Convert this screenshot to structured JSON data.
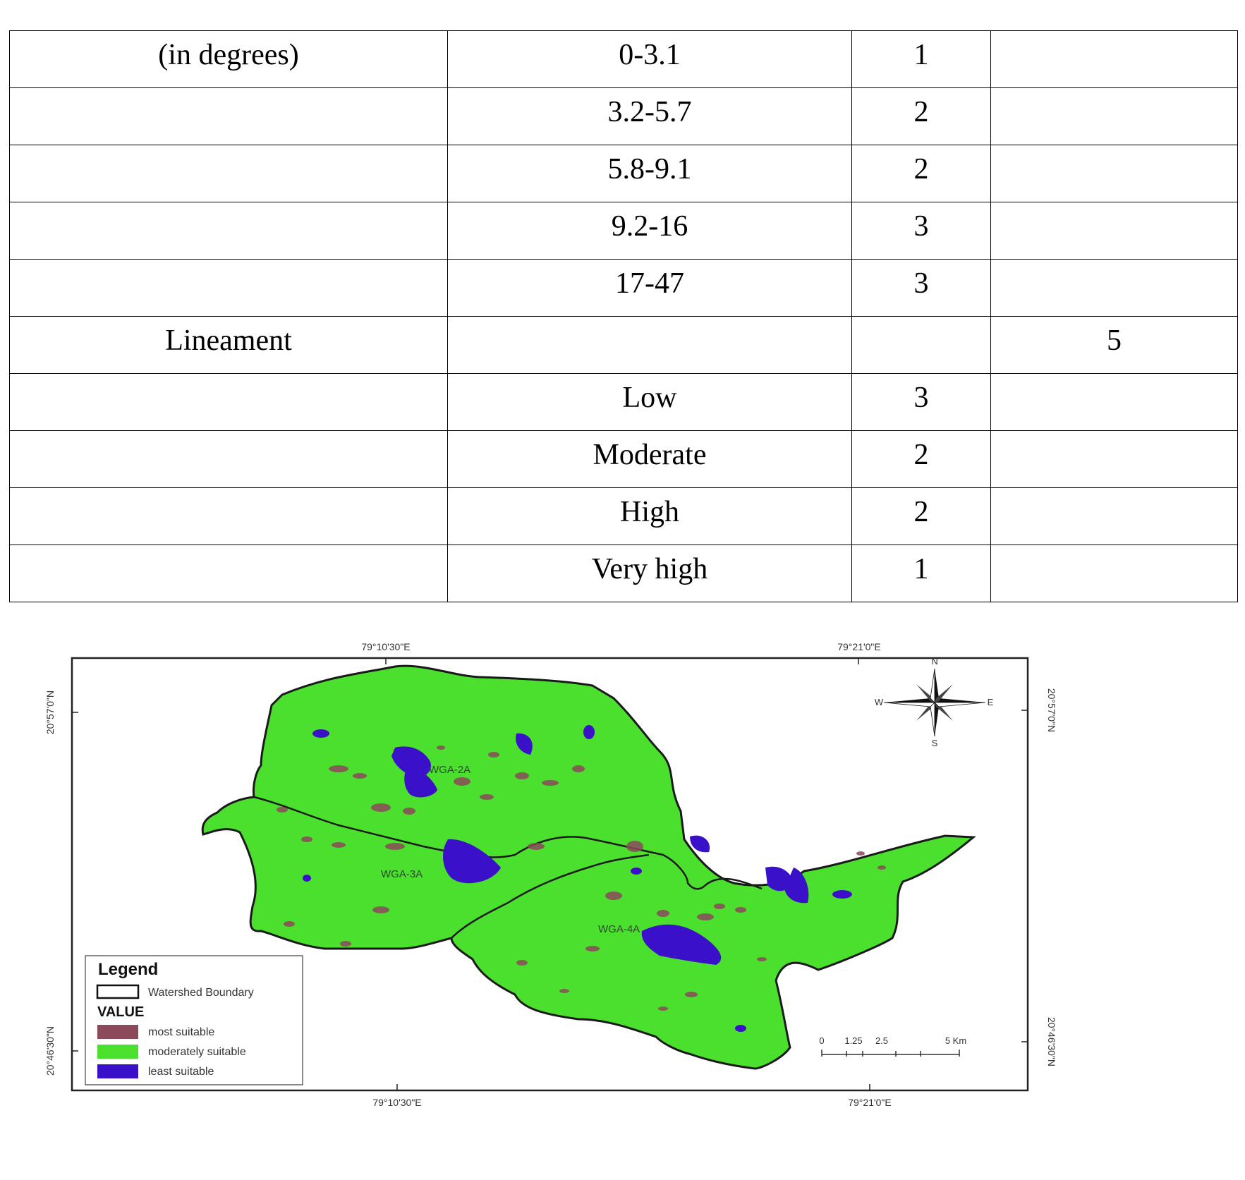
{
  "table": {
    "rows": [
      [
        "(in degrees)",
        "0-3.1",
        "1",
        ""
      ],
      [
        "",
        "3.2-5.7",
        "2",
        ""
      ],
      [
        "",
        "5.8-9.1",
        "2",
        ""
      ],
      [
        "",
        "9.2-16",
        "3",
        ""
      ],
      [
        "",
        "17-47",
        "3",
        ""
      ],
      [
        "Lineament",
        "",
        "",
        "5"
      ],
      [
        "",
        "Low",
        "3",
        ""
      ],
      [
        "",
        "Moderate",
        "2",
        ""
      ],
      [
        "",
        "High",
        "2",
        ""
      ],
      [
        "",
        "Very high",
        "1",
        ""
      ]
    ]
  },
  "map": {
    "coords": {
      "top_left": "79°10'30\"E",
      "top_right": "79°21'0\"E",
      "bottom_left": "79°10'30\"E",
      "bottom_right": "79°21'0\"E",
      "left_top": "20°57'0\"N",
      "left_bottom": "20°46'30\"N",
      "right_top": "20°57'0\"N",
      "right_bottom": "20°46'30\"N"
    },
    "subwatersheds": [
      "WGA-2A",
      "WGA-3A",
      "WGA-4A"
    ],
    "legend": {
      "title": "Legend",
      "boundary_label": "Watershed Boundary",
      "value_heading": "VALUE",
      "items": [
        {
          "label": "most suitable",
          "color": "#8b4a5a"
        },
        {
          "label": "moderately suitable",
          "color": "#4be02e"
        },
        {
          "label": "least suitable",
          "color": "#3a10c8"
        }
      ]
    },
    "scale": {
      "ticks": [
        "0",
        "1.25",
        "2.5",
        "5 Km"
      ]
    },
    "compass": {
      "n": "N",
      "s": "S",
      "e": "E",
      "w": "W"
    },
    "colors": {
      "land": "#4be02e",
      "water": "#3a10c8",
      "suitable": "#8b4a5a",
      "boundary": "#1a1a1a"
    }
  }
}
